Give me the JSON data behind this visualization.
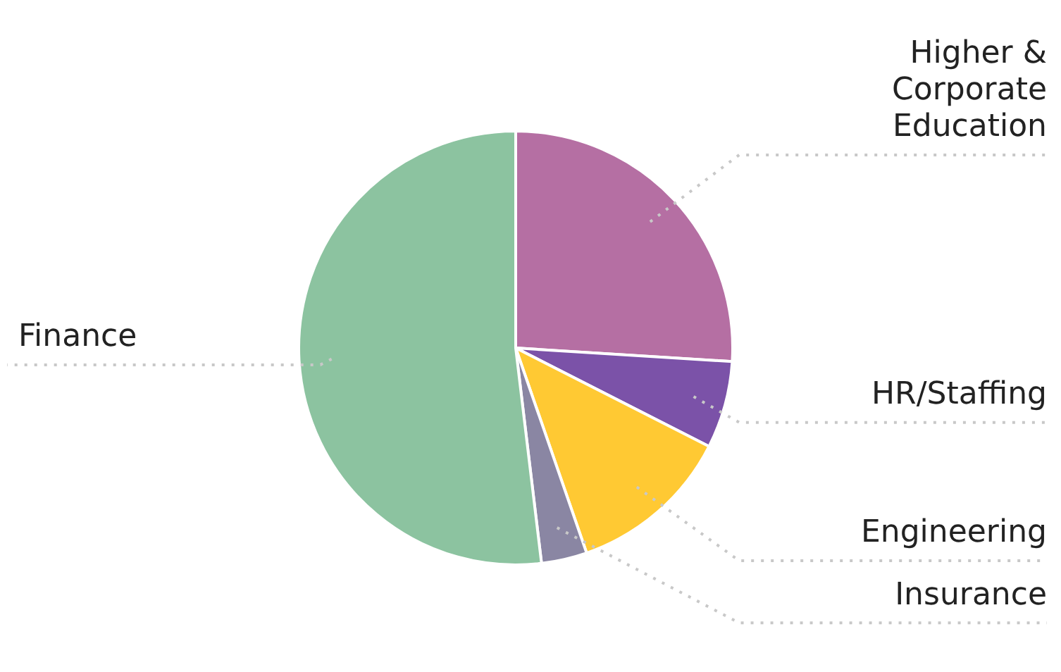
{
  "chart_data": {
    "type": "pie",
    "categories": [
      "Higher & Corporate Education",
      "HR/Staffing",
      "Engineering",
      "Insurance",
      "Finance"
    ],
    "values": [
      26,
      6.5,
      12.2,
      3.4,
      51.9
    ],
    "colors": [
      "#b56fa3",
      "#7b52a8",
      "#ffc933",
      "#8a86a3",
      "#8cc3a0"
    ],
    "legend": false
  }
}
